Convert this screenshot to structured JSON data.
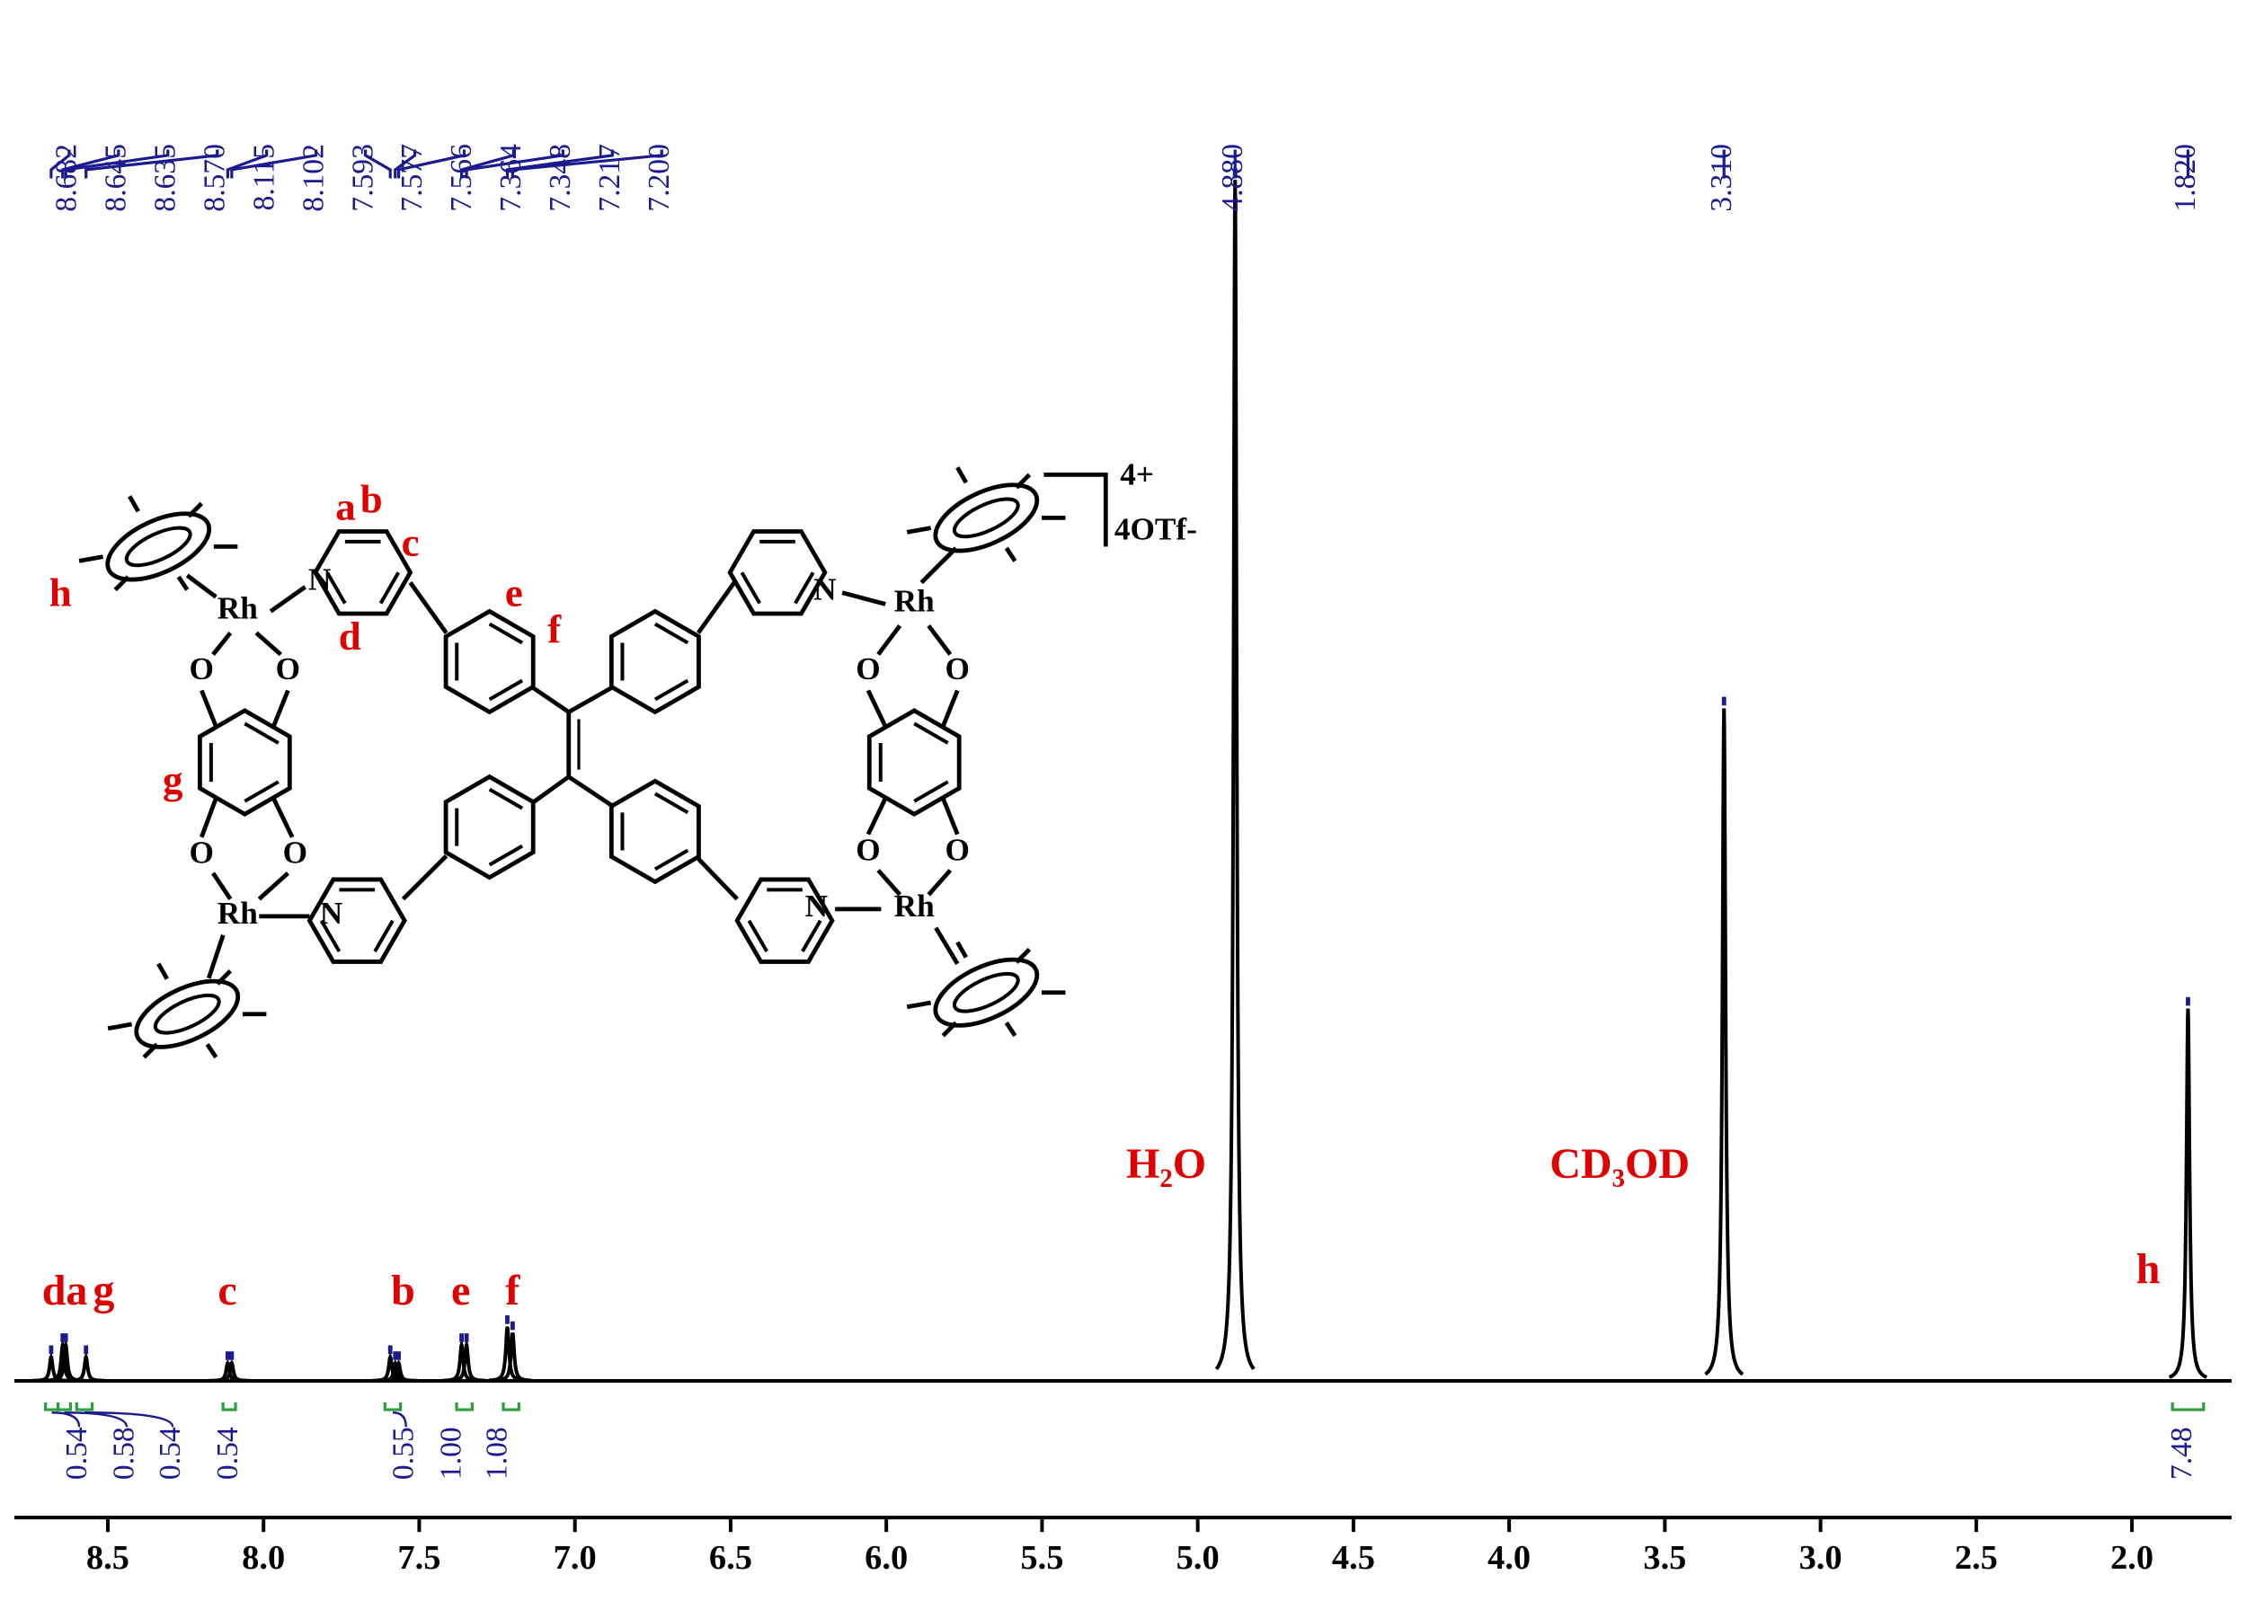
{
  "chart_data": {
    "type": "nmr",
    "x": [
      8.682,
      8.645,
      8.635,
      8.57,
      8.115,
      8.102,
      7.593,
      7.577,
      7.566,
      7.364,
      7.348,
      7.217,
      7.2,
      4.88,
      3.31,
      1.82
    ],
    "x_labels": [
      "8.682",
      "8.645",
      "8.635",
      "8.570",
      "8.115",
      "8.102",
      "7.593",
      "7.577",
      "7.566",
      "7.364",
      "7.348",
      "7.217",
      "7.200",
      "4.880",
      "3.310",
      "1.820"
    ],
    "values": [
      2,
      3,
      3,
      2,
      1.5,
      1.5,
      2,
      1.5,
      1.5,
      3,
      3,
      4.5,
      4,
      100,
      56,
      31
    ],
    "color": "#000000",
    "label_color": "#1b1b8f",
    "xlim": [
      8.8,
      1.68
    ],
    "ylim": [
      0,
      100
    ],
    "xticks": [
      8.5,
      {
        "value": 8,
        "label": "8.0"
      },
      7.5,
      {
        "value": 7,
        "label": "7.0"
      },
      6.5,
      {
        "value": 6,
        "label": "6.0"
      },
      5.5,
      {
        "value": 5,
        "label": "5.0"
      },
      4.5,
      {
        "value": 4,
        "label": "4.0"
      },
      3.5,
      {
        "value": 3,
        "label": "3.0"
      },
      2.5,
      {
        "value": 2,
        "label": "2.0"
      }
    ],
    "integrals": {
      "values": [
        0.54,
        0.58,
        0.54,
        0.54,
        0.55,
        1,
        1.08,
        7.48
      ],
      "value_labels": [
        "0.54",
        "0.58",
        "0.54",
        "0.54",
        "0.55",
        "1.00",
        "1.08",
        "7.48"
      ],
      "from": [
        8.7,
        8.66,
        8.6,
        8.13,
        7.61,
        7.38,
        7.23,
        1.87
      ],
      "to": [
        8.66,
        8.62,
        8.55,
        8.09,
        7.56,
        7.33,
        7.18,
        1.77
      ],
      "color": "#2e9e3a"
    },
    "annotations": [
      "da",
      "g",
      "c",
      "b",
      "e",
      "f",
      "H₂O",
      "CD₃OD",
      "h"
    ],
    "annotation_color": "#e00000",
    "structure": {
      "proton_labels": [
        "a",
        "b",
        "c",
        "d",
        "e",
        "f",
        "g",
        "h"
      ],
      "atoms": [
        "Rh",
        "Rh",
        "Rh",
        "Rh",
        "N",
        "N",
        "N",
        "N",
        "O",
        "O",
        "O",
        "O",
        "O",
        "O",
        "O",
        "O"
      ],
      "charge": "4+",
      "counterion": "4OTf-"
    }
  }
}
